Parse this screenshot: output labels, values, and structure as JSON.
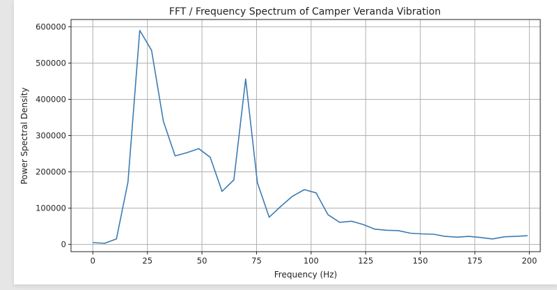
{
  "chart_data": {
    "type": "line",
    "title": "FFT / Frequency Spectrum of Camper Veranda Vibration",
    "xlabel": "Frequency (Hz)",
    "ylabel": "Power Spectral Density",
    "xlim": [
      -10,
      205
    ],
    "ylim": [
      -20000,
      620000
    ],
    "xticks": [
      0,
      25,
      50,
      75,
      100,
      125,
      150,
      175,
      200
    ],
    "yticks": [
      0,
      100000,
      200000,
      300000,
      400000,
      500000,
      600000
    ],
    "grid": true,
    "line_color": "#3a7bb4",
    "series": [
      {
        "x": [
          0,
          5.4,
          10.8,
          16.1,
          21.5,
          26.9,
          32.3,
          37.7,
          43.1,
          48.5,
          53.8,
          59.2,
          64.6,
          70.0,
          75.4,
          80.8,
          86.1,
          91.5,
          96.9,
          102.3,
          107.7,
          113.1,
          118.5,
          123.8,
          129.2,
          134.6,
          140.0,
          145.4,
          150.8,
          156.1,
          161.5,
          166.9,
          172.3,
          177.7,
          183.1,
          188.5,
          193.8,
          199.2
        ],
        "y": [
          5000,
          3000,
          15000,
          172000,
          590000,
          535000,
          340000,
          244000,
          253000,
          264000,
          240000,
          146000,
          178000,
          456000,
          170000,
          75000,
          105000,
          133000,
          151000,
          142000,
          82000,
          61000,
          64000,
          55000,
          42000,
          39000,
          38000,
          31000,
          29000,
          28000,
          22000,
          20000,
          22000,
          19000,
          15000,
          21000,
          22000,
          24000
        ]
      }
    ]
  }
}
